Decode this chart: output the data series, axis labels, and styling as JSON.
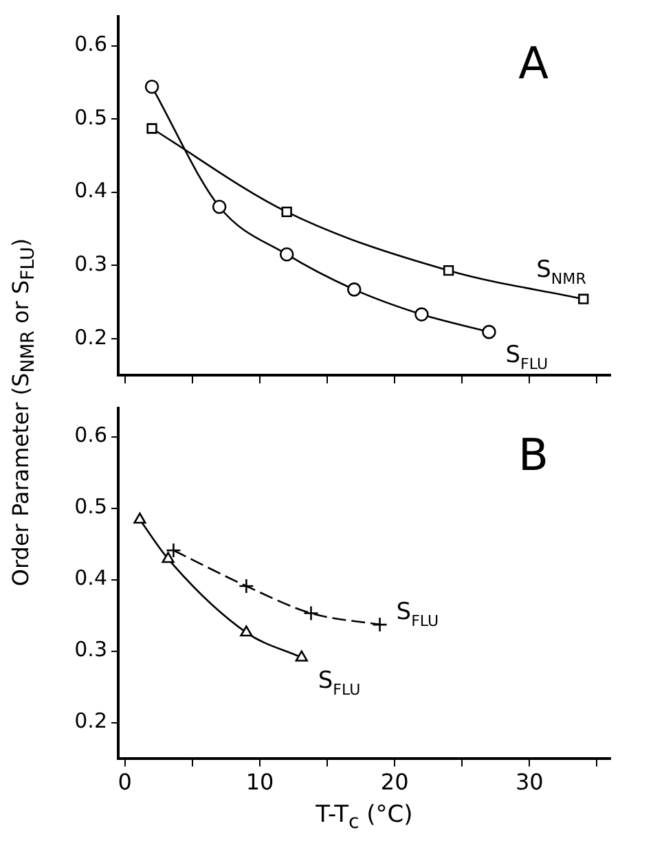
{
  "chart_data": [
    {
      "type": "line",
      "ylabel": "Order Parameter (S$_{NMR}$ or S$_{FLU}$)",
      "annotations": [
        "A"
      ],
      "xlim": [
        -0.5,
        36
      ],
      "xticks": [
        {
          "value": 0,
          "label": null
        },
        {
          "value": 5,
          "label": null
        },
        {
          "value": 10,
          "label": null
        },
        {
          "value": 15,
          "label": null
        },
        {
          "value": 20,
          "label": null
        },
        {
          "value": 25,
          "label": null
        },
        {
          "value": 30,
          "label": null
        },
        {
          "value": 35,
          "label": null
        }
      ],
      "ylim": [
        0.15,
        0.64
      ],
      "yticks": [
        0.2,
        0.3,
        0.4,
        0.5,
        0.6
      ],
      "tick_labels": "y",
      "grid": false,
      "legend": false,
      "series": [
        {
          "name": "S$_{FLU}$",
          "color": "#000000",
          "marker": "circle",
          "line_style": "solid",
          "x": [
            2,
            7,
            12,
            17,
            22,
            27
          ],
          "values": [
            0.544,
            0.38,
            0.315,
            0.267,
            0.233,
            0.209
          ]
        },
        {
          "name": "S$_{NMR}$",
          "color": "#000000",
          "marker": "square",
          "line_style": "solid",
          "x": [
            2,
            12,
            24,
            34
          ],
          "values": [
            0.487,
            0.373,
            0.293,
            0.254
          ]
        }
      ]
    },
    {
      "type": "line",
      "xlabel": "T-T$_{c}$ (°C)",
      "annotations": [
        "B"
      ],
      "xlim": [
        -0.5,
        36
      ],
      "xticks": [
        0,
        {
          "value": 5,
          "label": null
        },
        10,
        {
          "value": 15,
          "label": null
        },
        20,
        {
          "value": 25,
          "label": null
        },
        30,
        {
          "value": 35,
          "label": null
        }
      ],
      "ylim": [
        0.15,
        0.64
      ],
      "yticks": [
        0.2,
        0.3,
        0.4,
        0.5,
        0.6
      ],
      "grid": false,
      "legend": false,
      "series": [
        {
          "name": "S$_{FLU}$",
          "color": "#000000",
          "marker": "cross",
          "line_style": "dashed",
          "x": [
            3.6,
            9,
            13.8,
            18.9
          ],
          "values": [
            0.441,
            0.391,
            0.353,
            0.337
          ]
        },
        {
          "name": "S$_{FLU}$",
          "color": "#000000",
          "marker": "triangle",
          "line_style": "solid",
          "x": [
            1.1,
            3.2,
            9,
            13.1
          ],
          "values": [
            0.484,
            0.429,
            0.326,
            0.291
          ]
        }
      ]
    }
  ]
}
